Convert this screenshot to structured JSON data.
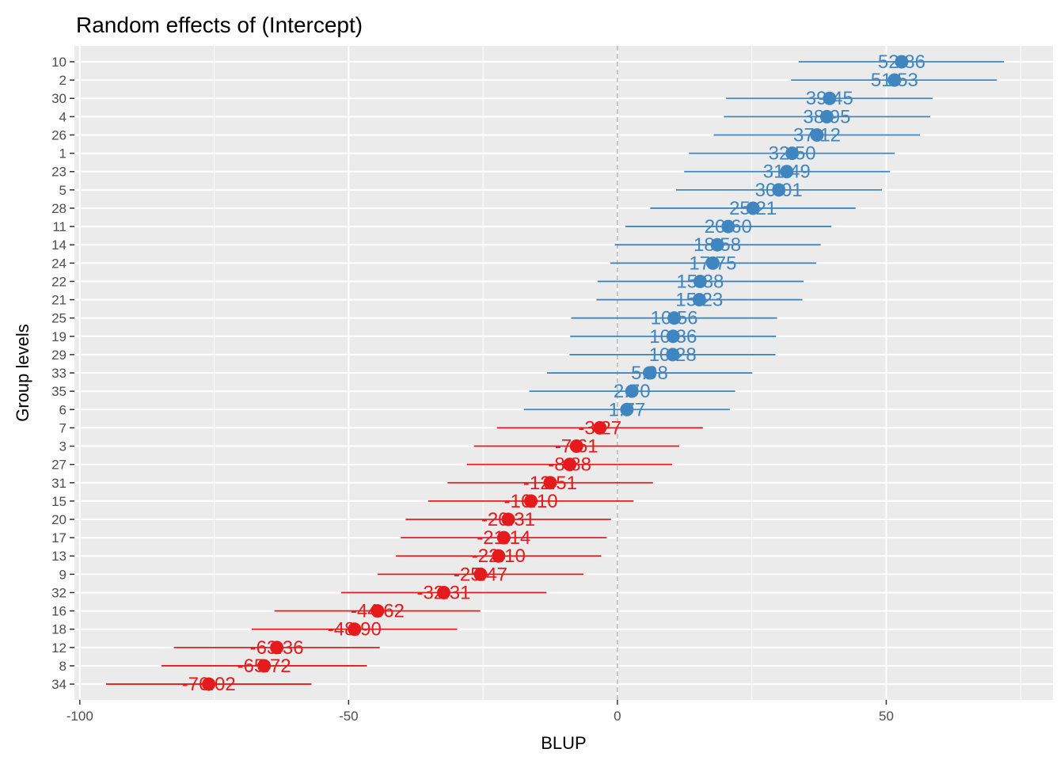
{
  "chart_data": {
    "type": "scatter",
    "title": "Random effects of  (Intercept)",
    "xlabel": "BLUP",
    "ylabel": "Group levels",
    "xlim": [
      -101,
      81
    ],
    "xticks": [
      -100,
      -50,
      0,
      50
    ],
    "xtick_labels": [
      "-100",
      "-50",
      "0",
      "50"
    ],
    "reference_line": 0,
    "grid": true,
    "colors": {
      "panel_bg": "#EBEBEB",
      "grid": "#FFFFFF",
      "positive": "#3F86C1",
      "negative": "#E41A1C",
      "reference": "#B3B3B3"
    },
    "points": [
      {
        "level": "10",
        "blup": 52.86,
        "lower": 33.7,
        "upper": 71.9,
        "label": "52.86"
      },
      {
        "level": "2",
        "blup": 51.53,
        "lower": 32.3,
        "upper": 70.6,
        "label": "51.53"
      },
      {
        "level": "30",
        "blup": 39.45,
        "lower": 20.2,
        "upper": 58.6,
        "label": "39.45"
      },
      {
        "level": "4",
        "blup": 38.95,
        "lower": 19.8,
        "upper": 58.2,
        "label": "38.95"
      },
      {
        "level": "26",
        "blup": 37.12,
        "lower": 17.9,
        "upper": 56.3,
        "label": "37.12"
      },
      {
        "level": "1",
        "blup": 32.5,
        "lower": 13.3,
        "upper": 51.6,
        "label": "32.50"
      },
      {
        "level": "23",
        "blup": 31.49,
        "lower": 12.4,
        "upper": 50.7,
        "label": "31.49"
      },
      {
        "level": "5",
        "blup": 30.01,
        "lower": 10.9,
        "upper": 49.2,
        "label": "30.01"
      },
      {
        "level": "28",
        "blup": 25.21,
        "lower": 6.1,
        "upper": 44.3,
        "label": "25.21"
      },
      {
        "level": "11",
        "blup": 20.6,
        "lower": 1.5,
        "upper": 39.8,
        "label": "20.60"
      },
      {
        "level": "14",
        "blup": 18.58,
        "lower": -0.5,
        "upper": 37.8,
        "label": "18.58"
      },
      {
        "level": "24",
        "blup": 17.75,
        "lower": -1.3,
        "upper": 37.0,
        "label": "17.75"
      },
      {
        "level": "22",
        "blup": 15.38,
        "lower": -3.7,
        "upper": 34.6,
        "label": "15.38"
      },
      {
        "level": "21",
        "blup": 15.23,
        "lower": -3.9,
        "upper": 34.4,
        "label": "15.23"
      },
      {
        "level": "25",
        "blup": 10.56,
        "lower": -8.6,
        "upper": 29.7,
        "label": "10.56"
      },
      {
        "level": "19",
        "blup": 10.36,
        "lower": -8.8,
        "upper": 29.5,
        "label": "10.36"
      },
      {
        "level": "29",
        "blup": 10.28,
        "lower": -8.9,
        "upper": 29.4,
        "label": "10.28"
      },
      {
        "level": "33",
        "blup": 5.98,
        "lower": -13.1,
        "upper": 25.1,
        "label": "5.98"
      },
      {
        "level": "35",
        "blup": 2.7,
        "lower": -16.4,
        "upper": 21.9,
        "label": "2.70"
      },
      {
        "level": "6",
        "blup": 1.77,
        "lower": -17.4,
        "upper": 20.9,
        "label": "1.77"
      },
      {
        "level": "7",
        "blup": -3.27,
        "lower": -22.4,
        "upper": 15.9,
        "label": "-3.27"
      },
      {
        "level": "3",
        "blup": -7.61,
        "lower": -26.7,
        "upper": 11.5,
        "label": "-7.61"
      },
      {
        "level": "27",
        "blup": -8.88,
        "lower": -28.0,
        "upper": 10.2,
        "label": "-8.88"
      },
      {
        "level": "31",
        "blup": -12.51,
        "lower": -31.6,
        "upper": 6.6,
        "label": "-12.51"
      },
      {
        "level": "15",
        "blup": -16.1,
        "lower": -35.2,
        "upper": 3.0,
        "label": "-16.10"
      },
      {
        "level": "20",
        "blup": -20.31,
        "lower": -39.4,
        "upper": -1.2,
        "label": "-20.31"
      },
      {
        "level": "17",
        "blup": -21.14,
        "lower": -40.3,
        "upper": -2.0,
        "label": "-21.14"
      },
      {
        "level": "13",
        "blup": -22.1,
        "lower": -41.2,
        "upper": -3.0,
        "label": "-22.10"
      },
      {
        "level": "9",
        "blup": -25.47,
        "lower": -44.6,
        "upper": -6.3,
        "label": "-25.47"
      },
      {
        "level": "32",
        "blup": -32.31,
        "lower": -51.4,
        "upper": -13.2,
        "label": "-32.31"
      },
      {
        "level": "16",
        "blup": -44.62,
        "lower": -63.8,
        "upper": -25.5,
        "label": "-44.62"
      },
      {
        "level": "18",
        "blup": -48.9,
        "lower": -68.0,
        "upper": -29.8,
        "label": "-48.90"
      },
      {
        "level": "12",
        "blup": -63.36,
        "lower": -82.5,
        "upper": -44.2,
        "label": "-63.36"
      },
      {
        "level": "8",
        "blup": -65.72,
        "lower": -84.8,
        "upper": -46.6,
        "label": "-65.72"
      },
      {
        "level": "34",
        "blup": -76.02,
        "lower": -95.1,
        "upper": -56.9,
        "label": "-76.02"
      }
    ]
  }
}
